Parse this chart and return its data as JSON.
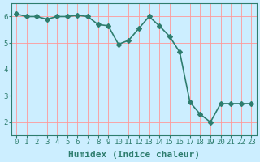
{
  "x": [
    0,
    1,
    2,
    3,
    4,
    5,
    6,
    7,
    8,
    9,
    10,
    11,
    12,
    13,
    14,
    15,
    16,
    17,
    18,
    19,
    20,
    21,
    22,
    23
  ],
  "y": [
    6.1,
    6.0,
    6.0,
    5.9,
    6.0,
    6.0,
    6.05,
    6.0,
    5.7,
    5.65,
    4.95,
    5.1,
    5.55,
    6.0,
    5.65,
    5.25,
    4.65,
    2.75,
    2.3,
    2.0,
    2.7,
    2.7,
    2.7,
    2.7
  ],
  "line_color": "#2e7d6e",
  "bg_color": "#cceeff",
  "grid_color_major": "#ff9999",
  "xlabel": "Humidex (Indice chaleur)",
  "ylim": [
    1.5,
    6.5
  ],
  "xlim": [
    -0.5,
    23.5
  ],
  "yticks": [
    2,
    3,
    4,
    5,
    6
  ],
  "xticks": [
    0,
    1,
    2,
    3,
    4,
    5,
    6,
    7,
    8,
    9,
    10,
    11,
    12,
    13,
    14,
    15,
    16,
    17,
    18,
    19,
    20,
    21,
    22,
    23
  ],
  "markersize": 3,
  "linewidth": 1.2,
  "xlabel_fontsize": 8,
  "tick_fontsize": 6.5
}
